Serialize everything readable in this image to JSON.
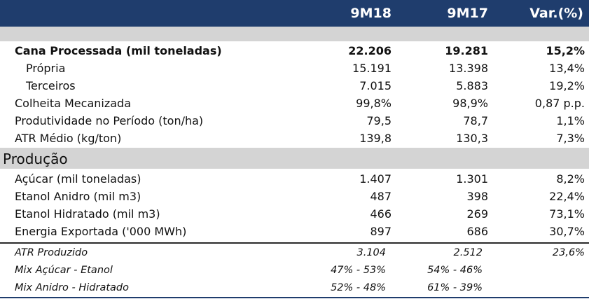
{
  "header": {
    "col1": "9M18",
    "col2": "9M17",
    "col3": "Var.(%)"
  },
  "rows": [
    {
      "label": "Cana Processada (mil toneladas)",
      "v1": "22.206",
      "v2": "19.281",
      "v3": "15,2%"
    },
    {
      "label": "Própria",
      "v1": "15.191",
      "v2": "13.398",
      "v3": "13,4%"
    },
    {
      "label": "Terceiros",
      "v1": "7.015",
      "v2": "5.883",
      "v3": "19,2%"
    },
    {
      "label": "Colheita Mecanizada",
      "v1": "99,8%",
      "v2": "98,9%",
      "v3": "0,87 p.p."
    },
    {
      "label": "Produtividade no Período (ton/ha)",
      "v1": "79,5",
      "v2": "78,7",
      "v3": "1,1%"
    },
    {
      "label": "ATR Médio (kg/ton)",
      "v1": "139,8",
      "v2": "130,3",
      "v3": "7,3%"
    }
  ],
  "section_title": "Produção",
  "production_rows": [
    {
      "label": "Açúcar (mil toneladas)",
      "v1": "1.407",
      "v2": "1.301",
      "v3": "8,2%"
    },
    {
      "label": "Etanol Anidro (mil m3)",
      "v1": "487",
      "v2": "398",
      "v3": "22,4%"
    },
    {
      "label": "Etanol Hidratado (mil m3)",
      "v1": "466",
      "v2": "269",
      "v3": "73,1%"
    },
    {
      "label": "Energia Exportada ('000 MWh)",
      "v1": "897",
      "v2": "686",
      "v3": "30,7%"
    }
  ],
  "footer_rows": [
    {
      "label": "ATR Produzido",
      "v1": "3.104",
      "v2": "2.512",
      "v3": "23,6%"
    },
    {
      "label": "Mix Açúcar - Etanol",
      "v1": "47% - 53%",
      "v2": "54% - 46%",
      "v3": ""
    },
    {
      "label": "Mix Anidro - Hidratado",
      "v1": "52% - 48%",
      "v2": "61% - 39%",
      "v3": ""
    }
  ],
  "colors": {
    "header_bg": "#1f3d6d",
    "band_bg": "#d4d4d4"
  }
}
